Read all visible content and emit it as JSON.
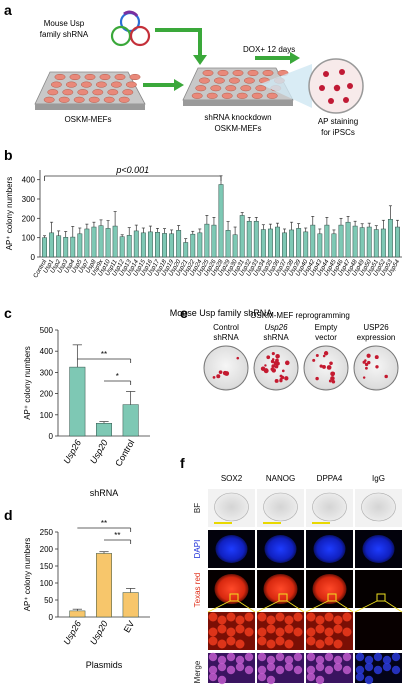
{
  "panels": {
    "a": {
      "label": "a",
      "shrna_label_line1": "Mouse Usp",
      "shrna_label_line2": "family shRNA",
      "dox_label": "DOX+ 12 days",
      "plate1_label": "OSKM-MEFs",
      "plate2_label_line1": "shRNA knockdown",
      "plate2_label_line2": "OSKM-MEFs",
      "dish_label_line1": "AP staining",
      "dish_label_line2": "for iPSCs"
    },
    "b": {
      "label": "b"
    },
    "c": {
      "label": "c"
    },
    "d": {
      "label": "d"
    },
    "e": {
      "label": "e",
      "title": "OSKM-MEF reprogramming",
      "columns": [
        {
          "line1": "Control",
          "line2": "shRNA"
        },
        {
          "line1": "Usp26",
          "line2": "shRNA"
        },
        {
          "line1": "Empty",
          "line2": "vector"
        },
        {
          "line1": "USP26",
          "line2": "expression"
        }
      ]
    },
    "f": {
      "label": "f",
      "columns": [
        "SOX2",
        "NANOG",
        "DPPA4",
        "IgG"
      ],
      "rows": [
        "BF",
        "DAPI",
        "Texas red",
        "Merge"
      ]
    }
  },
  "colors": {
    "teal_bar": "#7ec8b4",
    "orange_bar": "#f7c66b",
    "arrow_green": "#3aa83a",
    "dapi_blue": "#1a2bd8",
    "texas_red": "#e0301a",
    "yellow_box": "#f0e020"
  },
  "chart_data": [
    {
      "panel": "b",
      "type": "bar",
      "xlabel": "Mouse Usp family shRNA",
      "ylabel": "AP⁺ colony numbers",
      "ylim": [
        0,
        450
      ],
      "yticks": [
        "0",
        "100",
        "200",
        "300",
        "400"
      ],
      "annotation": "p<0.001",
      "categories": [
        "Control",
        "Usp1",
        "Usp2",
        "Usp3",
        "Usp4",
        "Usp5",
        "Usp7",
        "Usp8",
        "Usp9x",
        "Usp10",
        "Usp11",
        "Usp12",
        "Usp13",
        "Usp14",
        "Usp15",
        "Usp16",
        "Usp17",
        "Usp18",
        "Usp19",
        "Usp20",
        "Usp21",
        "Usp22",
        "Usp24",
        "Usp25",
        "Usp26",
        "Usp28",
        "Usp29",
        "Usp30",
        "Usp31",
        "Usp32",
        "Usp33",
        "Usp34",
        "Usp35",
        "Usp36",
        "Usp37",
        "Usp38",
        "Usp39",
        "Usp40",
        "Usp42",
        "Usp43",
        "Usp44",
        "Usp45",
        "Usp46",
        "Usp47",
        "Usp48",
        "Usp49",
        "Usp50",
        "Usp51",
        "Usp52",
        "Usp53",
        "Usp54"
      ],
      "values": [
        100,
        125,
        110,
        102,
        103,
        120,
        145,
        155,
        162,
        148,
        160,
        105,
        112,
        135,
        125,
        130,
        128,
        122,
        120,
        138,
        75,
        118,
        125,
        170,
        165,
        375,
        138,
        115,
        215,
        185,
        185,
        142,
        145,
        155,
        125,
        140,
        148,
        130,
        165,
        120,
        165,
        120,
        165,
        180,
        160,
        152,
        155,
        142,
        145,
        195,
        155
      ],
      "errors": [
        10,
        55,
        25,
        30,
        55,
        30,
        25,
        25,
        30,
        40,
        75,
        10,
        40,
        30,
        25,
        30,
        20,
        25,
        20,
        25,
        20,
        15,
        20,
        45,
        40,
        45,
        45,
        40,
        15,
        20,
        20,
        25,
        25,
        20,
        20,
        40,
        25,
        20,
        45,
        25,
        40,
        20,
        35,
        30,
        25,
        20,
        20,
        20,
        45,
        70,
        35
      ]
    },
    {
      "panel": "c",
      "type": "bar",
      "xlabel": "shRNA",
      "ylabel": "AP⁺ colony numbers",
      "ylim": [
        0,
        500
      ],
      "yticks": [
        "0",
        "100",
        "200",
        "300",
        "400",
        "500"
      ],
      "categories": [
        "Usp26",
        "Usp20",
        "Control"
      ],
      "values": [
        325,
        60,
        148
      ],
      "errors": [
        105,
        8,
        62
      ],
      "significance": [
        {
          "from": "Usp26",
          "to": "Control",
          "label": "**"
        },
        {
          "from": "Usp20",
          "to": "Control",
          "label": "*"
        }
      ]
    },
    {
      "panel": "d",
      "type": "bar",
      "xlabel": "Plasmids",
      "ylabel": "AP⁺ colony numbers",
      "ylim": [
        0,
        250
      ],
      "yticks": [
        "0",
        "50",
        "100",
        "150",
        "200",
        "250"
      ],
      "categories": [
        "Usp26",
        "Usp20",
        "EV"
      ],
      "values": [
        18,
        187,
        72
      ],
      "errors": [
        5,
        5,
        12
      ],
      "significance": [
        {
          "from": "Usp26",
          "to": "EV",
          "label": "**"
        },
        {
          "from": "Usp20",
          "to": "EV",
          "label": "**"
        }
      ]
    }
  ]
}
